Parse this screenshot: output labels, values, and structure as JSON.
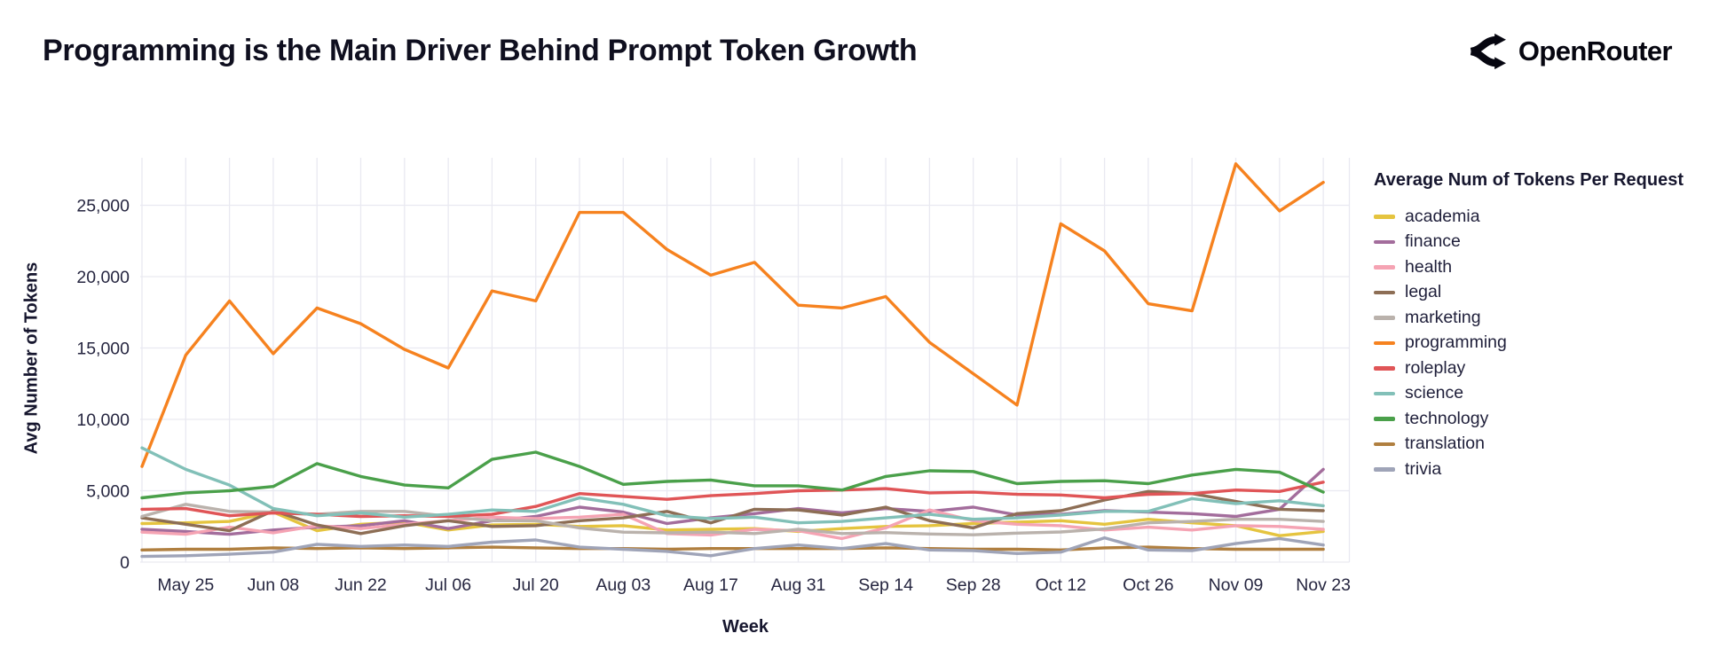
{
  "header": {
    "title": "Programming is the Main Driver Behind Prompt Token Growth",
    "brand": "OpenRouter"
  },
  "chart_data": {
    "type": "line",
    "title": "Programming is the Main Driver Behind Prompt Token Growth",
    "xlabel": "Week",
    "ylabel": "Avg Number of Tokens",
    "legend_title": "Average Num of Tokens Per Request",
    "legend_position": "right",
    "grid": true,
    "ylim": [
      0,
      28300
    ],
    "yticks": [
      0,
      5000,
      10000,
      15000,
      20000,
      25000
    ],
    "xtick_labels_shown": [
      "May 25",
      "Jun 08",
      "Jun 22",
      "Jul 06",
      "Jul 20",
      "Aug 03",
      "Aug 17",
      "Aug 31",
      "Sep 14",
      "Sep 28",
      "Oct 12",
      "Oct 26",
      "Nov 09",
      "Nov 23"
    ],
    "x": [
      "May 18",
      "May 25",
      "Jun 01",
      "Jun 08",
      "Jun 15",
      "Jun 22",
      "Jun 29",
      "Jul 06",
      "Jul 13",
      "Jul 20",
      "Jul 27",
      "Aug 03",
      "Aug 10",
      "Aug 17",
      "Aug 24",
      "Aug 31",
      "Sep 07",
      "Sep 14",
      "Sep 21",
      "Sep 28",
      "Oct 05",
      "Oct 12",
      "Oct 19",
      "Oct 26",
      "Nov 02",
      "Nov 09",
      "Nov 16",
      "Nov 23"
    ],
    "series": [
      {
        "name": "academia",
        "color": "#e5c43f",
        "values": [
          2700,
          2750,
          2850,
          3500,
          2200,
          2650,
          2800,
          2250,
          2600,
          2650,
          2500,
          2550,
          2250,
          2300,
          2350,
          2150,
          2350,
          2500,
          2550,
          2700,
          2800,
          2900,
          2650,
          3000,
          2750,
          2550,
          1850,
          2150
        ]
      },
      {
        "name": "finance",
        "color": "#a36d9c",
        "values": [
          2300,
          2150,
          1950,
          2250,
          2450,
          2550,
          2900,
          2350,
          2900,
          3200,
          3850,
          3500,
          2700,
          3100,
          3400,
          3750,
          3450,
          3750,
          3550,
          3850,
          3300,
          3350,
          3600,
          3500,
          3400,
          3200,
          3700,
          6500
        ]
      },
      {
        "name": "health",
        "color": "#f5a3b3",
        "values": [
          2100,
          1950,
          2450,
          2050,
          2550,
          2350,
          2650,
          2900,
          3150,
          3050,
          3150,
          3350,
          2000,
          1900,
          2300,
          2200,
          1650,
          2400,
          3650,
          2900,
          2650,
          2550,
          2250,
          2450,
          2250,
          2550,
          2500,
          2300
        ]
      },
      {
        "name": "legal",
        "color": "#8d6e55",
        "values": [
          3100,
          2650,
          2200,
          3600,
          2600,
          2000,
          2550,
          2900,
          2500,
          2550,
          2900,
          3100,
          3550,
          2750,
          3700,
          3650,
          3300,
          3850,
          2900,
          2400,
          3400,
          3600,
          4350,
          4950,
          4800,
          4250,
          3700,
          3600
        ]
      },
      {
        "name": "marketing",
        "color": "#bab2ac",
        "values": [
          3200,
          4050,
          3550,
          3500,
          3350,
          3550,
          3550,
          3200,
          2900,
          2900,
          2400,
          2100,
          2050,
          2100,
          2000,
          2300,
          2000,
          2070,
          1970,
          1910,
          2030,
          2110,
          2320,
          2750,
          2850,
          3000,
          3000,
          2850
        ]
      },
      {
        "name": "programming",
        "color": "#f6821f",
        "values": [
          6700,
          14500,
          18300,
          14600,
          17800,
          16700,
          14900,
          13600,
          19000,
          18300,
          24500,
          24500,
          21900,
          20100,
          21000,
          18000,
          17800,
          18600,
          15400,
          13200,
          11000,
          23700,
          21800,
          18100,
          17600,
          27900,
          24600,
          26600
        ]
      },
      {
        "name": "roleplay",
        "color": "#e05557",
        "values": [
          3700,
          3750,
          3250,
          3450,
          3350,
          3200,
          3250,
          3200,
          3350,
          3900,
          4800,
          4600,
          4400,
          4650,
          4800,
          5000,
          5050,
          5150,
          4850,
          4900,
          4750,
          4700,
          4500,
          4750,
          4800,
          5050,
          4950,
          5600
        ]
      },
      {
        "name": "science",
        "color": "#82c0b8",
        "values": [
          8000,
          6500,
          5400,
          3750,
          3250,
          3450,
          3150,
          3350,
          3650,
          3550,
          4500,
          4050,
          3250,
          3050,
          3150,
          2750,
          2850,
          3100,
          3350,
          3000,
          3100,
          3300,
          3550,
          3550,
          4450,
          4100,
          4300,
          3950
        ]
      },
      {
        "name": "technology",
        "color": "#4aa04a",
        "values": [
          4500,
          4850,
          5000,
          5300,
          6900,
          6000,
          5400,
          5200,
          7200,
          7700,
          6700,
          5450,
          5650,
          5750,
          5350,
          5350,
          5050,
          6000,
          6400,
          6350,
          5500,
          5650,
          5700,
          5500,
          6100,
          6500,
          6300,
          4900
        ]
      },
      {
        "name": "translation",
        "color": "#b07f3f",
        "values": [
          850,
          900,
          900,
          1000,
          950,
          1000,
          950,
          1000,
          1050,
          1000,
          950,
          950,
          900,
          950,
          950,
          950,
          950,
          1000,
          950,
          900,
          900,
          850,
          1000,
          1050,
          950,
          900,
          900,
          900
        ]
      },
      {
        "name": "trivia",
        "color": "#9fa4b8",
        "values": [
          400,
          450,
          550,
          700,
          1250,
          1100,
          1200,
          1100,
          1400,
          1550,
          1050,
          900,
          750,
          450,
          950,
          1200,
          950,
          1300,
          850,
          800,
          600,
          700,
          1700,
          850,
          800,
          1300,
          1650,
          1200
        ]
      }
    ]
  }
}
